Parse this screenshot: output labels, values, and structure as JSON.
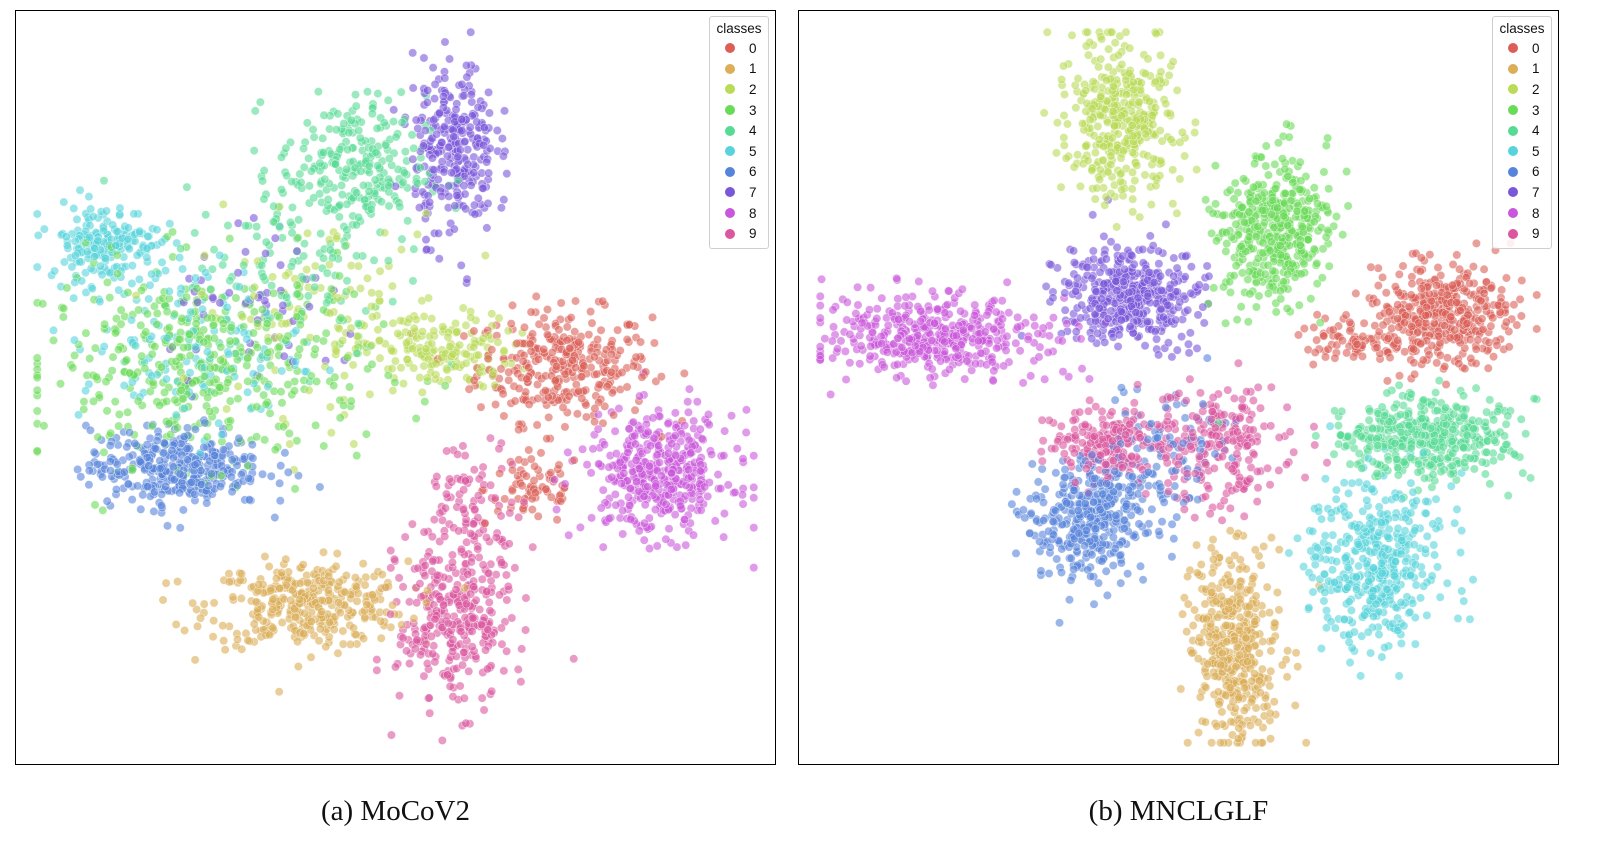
{
  "chart_data": [
    {
      "type": "scatter",
      "title": "",
      "caption": "(a) MoCoV2",
      "xlabel": "",
      "ylabel": "",
      "grid": false,
      "legend": {
        "title": "classes",
        "placement": "top-right"
      },
      "x_range": [
        0,
        100
      ],
      "y_range": [
        0,
        100
      ],
      "series": [
        {
          "name": "0",
          "color": "#db5f57",
          "clusters": [
            {
              "cx": 73,
              "cy": 53,
              "sx": 7,
              "sy": 4.5,
              "n": 320
            },
            {
              "cx": 69,
              "cy": 36,
              "sx": 4,
              "sy": 3,
              "n": 70
            }
          ]
        },
        {
          "name": "1",
          "color": "#dbae57",
          "clusters": [
            {
              "cx": 38,
              "cy": 20,
              "sx": 8,
              "sy": 3.5,
              "n": 360
            }
          ]
        },
        {
          "name": "2",
          "color": "#b9db57",
          "clusters": [
            {
              "cx": 56,
              "cy": 55,
              "sx": 6,
              "sy": 3,
              "n": 160
            },
            {
              "cx": 40,
              "cy": 60,
              "sx": 10,
              "sy": 8,
              "n": 120
            }
          ]
        },
        {
          "name": "3",
          "color": "#69db57",
          "clusters": [
            {
              "cx": 24,
              "cy": 53,
              "sx": 13,
              "sy": 8,
              "n": 420
            }
          ]
        },
        {
          "name": "4",
          "color": "#57db94",
          "clusters": [
            {
              "cx": 44,
              "cy": 80,
              "sx": 6,
              "sy": 6,
              "n": 260
            },
            {
              "cx": 36,
              "cy": 66,
              "sx": 9,
              "sy": 7,
              "n": 100
            }
          ]
        },
        {
          "name": "5",
          "color": "#57d3db",
          "clusters": [
            {
              "cx": 10,
              "cy": 70,
              "sx": 4.5,
              "sy": 3,
              "n": 180
            },
            {
              "cx": 22,
              "cy": 56,
              "sx": 9,
              "sy": 7,
              "n": 150
            }
          ]
        },
        {
          "name": "6",
          "color": "#5784db",
          "clusters": [
            {
              "cx": 20,
              "cy": 39,
              "sx": 7,
              "sy": 3.2,
              "n": 360
            }
          ]
        },
        {
          "name": "7",
          "color": "#7957db",
          "clusters": [
            {
              "cx": 58,
              "cy": 83,
              "sx": 3.3,
              "sy": 7,
              "n": 300
            },
            {
              "cx": 33,
              "cy": 60,
              "sx": 8,
              "sy": 6,
              "n": 50
            }
          ]
        },
        {
          "name": "8",
          "color": "#c957db",
          "clusters": [
            {
              "cx": 86,
              "cy": 38,
              "sx": 6,
              "sy": 5,
              "n": 420
            }
          ]
        },
        {
          "name": "9",
          "color": "#db579e",
          "clusters": [
            {
              "cx": 58,
              "cy": 18,
              "sx": 4.5,
              "sy": 7,
              "n": 330
            },
            {
              "cx": 61,
              "cy": 34,
              "sx": 4,
              "sy": 5,
              "n": 90
            }
          ]
        }
      ]
    },
    {
      "type": "scatter",
      "title": "",
      "caption": "(b) MNCLGLF",
      "xlabel": "",
      "ylabel": "",
      "grid": false,
      "legend": {
        "title": "classes",
        "placement": "top-right"
      },
      "x_range": [
        0,
        100
      ],
      "y_range": [
        0,
        100
      ],
      "series": [
        {
          "name": "0",
          "color": "#db5f57",
          "clusters": [
            {
              "cx": 86,
              "cy": 60,
              "sx": 5.5,
              "sy": 4,
              "n": 420
            },
            {
              "cx": 74,
              "cy": 56,
              "sx": 4,
              "sy": 2,
              "n": 70
            }
          ]
        },
        {
          "name": "1",
          "color": "#dbae57",
          "clusters": [
            {
              "cx": 58,
              "cy": 14,
              "sx": 3.5,
              "sy": 8,
              "n": 420
            }
          ]
        },
        {
          "name": "2",
          "color": "#b9db57",
          "clusters": [
            {
              "cx": 42,
              "cy": 87,
              "sx": 4.3,
              "sy": 6,
              "n": 400
            }
          ]
        },
        {
          "name": "3",
          "color": "#69db57",
          "clusters": [
            {
              "cx": 63,
              "cy": 72,
              "sx": 4.5,
              "sy": 6,
              "n": 430
            }
          ]
        },
        {
          "name": "4",
          "color": "#57db94",
          "clusters": [
            {
              "cx": 84,
              "cy": 43,
              "sx": 7,
              "sy": 3.2,
              "n": 400
            }
          ]
        },
        {
          "name": "5",
          "color": "#57d3db",
          "clusters": [
            {
              "cx": 77,
              "cy": 26,
              "sx": 5.5,
              "sy": 7,
              "n": 430
            }
          ]
        },
        {
          "name": "6",
          "color": "#5784db",
          "clusters": [
            {
              "cx": 38,
              "cy": 32,
              "sx": 4.5,
              "sy": 5,
              "n": 360
            },
            {
              "cx": 48,
              "cy": 40,
              "sx": 5,
              "sy": 5,
              "n": 100
            }
          ]
        },
        {
          "name": "7",
          "color": "#7957db",
          "clusters": [
            {
              "cx": 43,
              "cy": 63,
              "sx": 5.5,
              "sy": 4,
              "n": 420
            }
          ]
        },
        {
          "name": "8",
          "color": "#c957db",
          "clusters": [
            {
              "cx": 17,
              "cy": 57,
              "sx": 9,
              "sy": 3.3,
              "n": 420
            }
          ]
        },
        {
          "name": "9",
          "color": "#db579e",
          "clusters": [
            {
              "cx": 40,
              "cy": 42,
              "sx": 4,
              "sy": 2.8,
              "n": 200
            },
            {
              "cx": 56,
              "cy": 42,
              "sx": 6,
              "sy": 5,
              "n": 230
            }
          ]
        }
      ]
    }
  ]
}
